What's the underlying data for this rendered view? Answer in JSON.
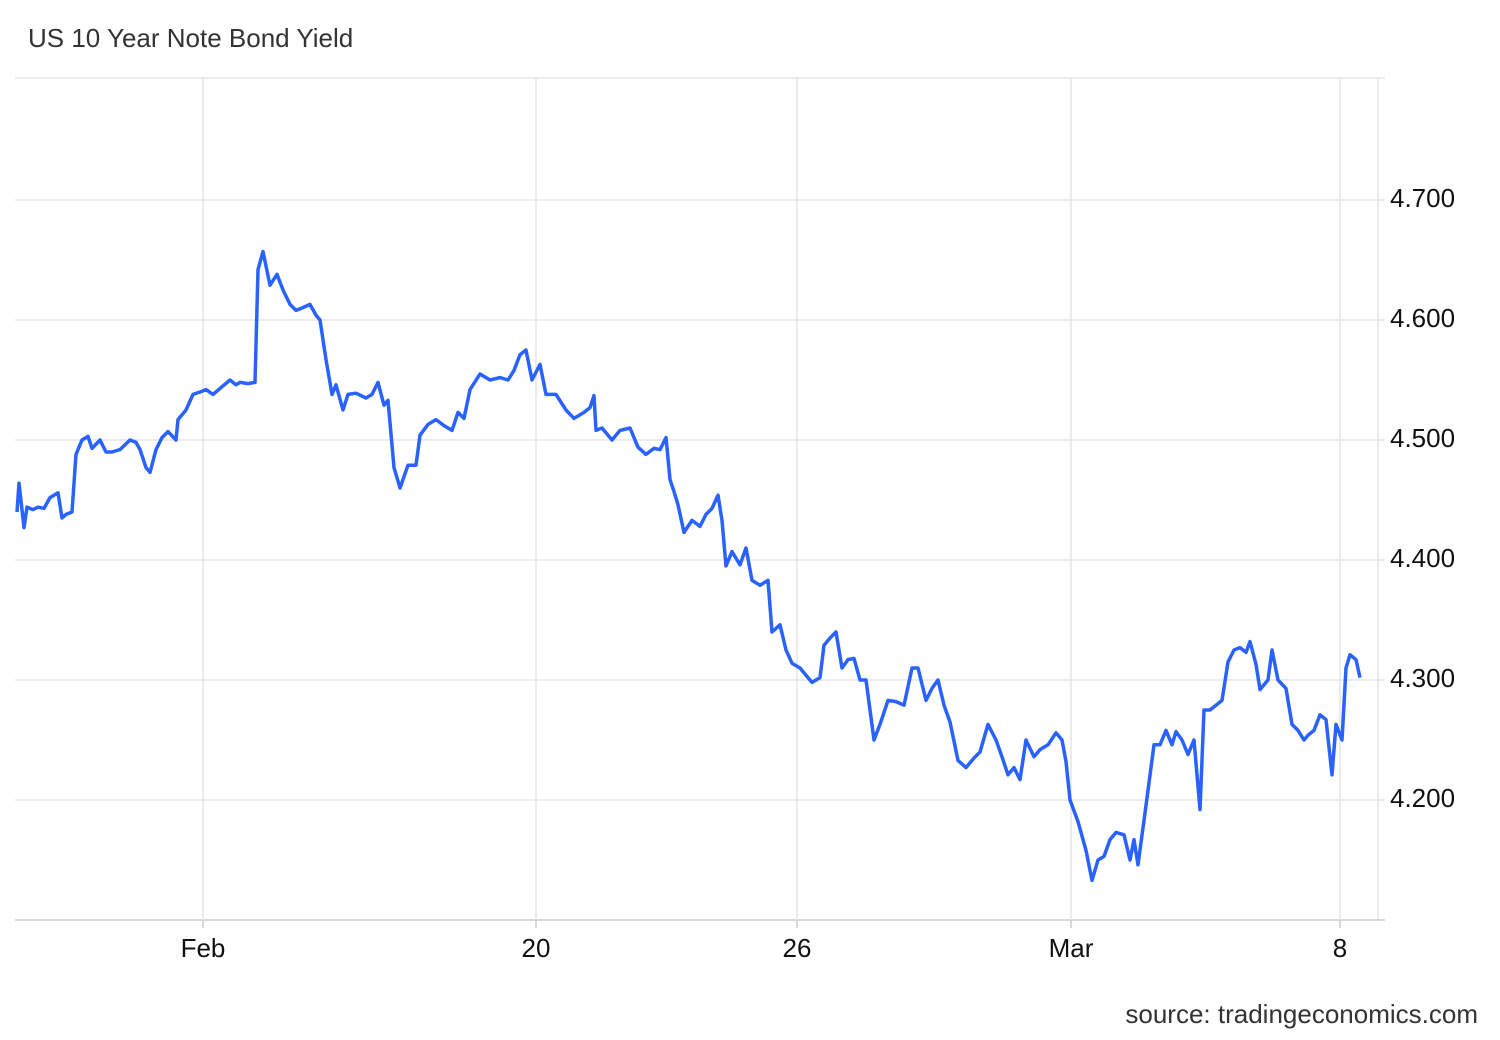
{
  "chart_data": {
    "type": "line",
    "title": "US 10 Year Note Bond Yield",
    "source": "source: tradingeconomics.com",
    "x": [
      2,
      4,
      9,
      12,
      18,
      23,
      29,
      35,
      43,
      47,
      51,
      57,
      61,
      67,
      73,
      77,
      85,
      91,
      97,
      105,
      115,
      121,
      125,
      131,
      135,
      141,
      147,
      153,
      161,
      163,
      171,
      178,
      185,
      191,
      198,
      205,
      215,
      221,
      225,
      233,
      240,
      243,
      248,
      255,
      262,
      268,
      275,
      281,
      287,
      295,
      301,
      305,
      311,
      317,
      321,
      328,
      333,
      341,
      351,
      357,
      363,
      369,
      373,
      379,
      385,
      393,
      401,
      405,
      413,
      421,
      429,
      437,
      443,
      449,
      455,
      465,
      475,
      485,
      493,
      499,
      505,
      511,
      517,
      525,
      531,
      541,
      551,
      559,
      569,
      575,
      579,
      581,
      587,
      597,
      605,
      615,
      623,
      631,
      639,
      645,
      651,
      655,
      659,
      663,
      669,
      677,
      685,
      691,
      697,
      703,
      707,
      711,
      717,
      725,
      731,
      737,
      745,
      753,
      757,
      765,
      771,
      777,
      785,
      793,
      797,
      805,
      809,
      815,
      821,
      827,
      833,
      839,
      845,
      851,
      859,
      865,
      873,
      881,
      889,
      897,
      903,
      911,
      917,
      923,
      929,
      935,
      943,
      951,
      959,
      965,
      973,
      981,
      987,
      993,
      999,
      1005,
      1011,
      1019,
      1025,
      1033,
      1041,
      1047,
      1051,
      1055,
      1063,
      1071,
      1077,
      1083,
      1089,
      1095,
      1101,
      1109,
      1115,
      1119,
      1123,
      1129,
      1133,
      1139,
      1145,
      1151,
      1157,
      1161,
      1167,
      1173,
      1179,
      1185,
      1189,
      1195,
      1201,
      1207,
      1213,
      1219,
      1225,
      1231,
      1235,
      1241,
      1245,
      1253,
      1257,
      1263,
      1271,
      1277,
      1283,
      1289,
      1293,
      1299,
      1305,
      1311,
      1317,
      1321,
      1327,
      1331,
      1335,
      1341,
      1345
    ],
    "series": [
      {
        "name": "US 10 Year Note Bond Yield",
        "color": "#2962ff",
        "values": [
          4.44,
          4.464,
          4.427,
          4.444,
          4.442,
          4.444,
          4.443,
          4.452,
          4.456,
          4.435,
          4.438,
          4.44,
          4.488,
          4.5,
          4.503,
          4.493,
          4.5,
          4.49,
          4.49,
          4.492,
          4.5,
          4.498,
          4.492,
          4.477,
          4.473,
          4.492,
          4.502,
          4.507,
          4.5,
          4.517,
          4.525,
          4.538,
          4.54,
          4.542,
          4.538,
          4.543,
          4.55,
          4.546,
          4.548,
          4.547,
          4.548,
          4.642,
          4.657,
          4.629,
          4.638,
          4.625,
          4.613,
          4.608,
          4.61,
          4.613,
          4.604,
          4.6,
          4.567,
          4.538,
          4.546,
          4.525,
          4.538,
          4.539,
          4.535,
          4.538,
          4.548,
          4.529,
          4.533,
          4.477,
          4.46,
          4.479,
          4.479,
          4.504,
          4.513,
          4.517,
          4.512,
          4.508,
          4.523,
          4.518,
          4.542,
          4.555,
          4.55,
          4.552,
          4.55,
          4.558,
          4.571,
          4.575,
          4.55,
          4.563,
          4.538,
          4.538,
          4.525,
          4.518,
          4.523,
          4.527,
          4.537,
          4.508,
          4.51,
          4.5,
          4.508,
          4.51,
          4.494,
          4.488,
          4.493,
          4.492,
          4.502,
          4.467,
          4.457,
          4.446,
          4.423,
          4.433,
          4.428,
          4.438,
          4.443,
          4.454,
          4.433,
          4.395,
          4.407,
          4.396,
          4.41,
          4.383,
          4.379,
          4.383,
          4.34,
          4.346,
          4.325,
          4.314,
          4.31,
          4.302,
          4.298,
          4.302,
          4.329,
          4.335,
          4.34,
          4.31,
          4.317,
          4.318,
          4.3,
          4.3,
          4.25,
          4.263,
          4.283,
          4.282,
          4.279,
          4.31,
          4.31,
          4.283,
          4.293,
          4.3,
          4.279,
          4.265,
          4.233,
          4.227,
          4.235,
          4.24,
          4.263,
          4.25,
          4.236,
          4.221,
          4.227,
          4.217,
          4.25,
          4.236,
          4.242,
          4.246,
          4.256,
          4.25,
          4.232,
          4.2,
          4.182,
          4.158,
          4.133,
          4.15,
          4.153,
          4.167,
          4.173,
          4.171,
          4.15,
          4.167,
          4.146,
          4.183,
          4.208,
          4.246,
          4.246,
          4.258,
          4.246,
          4.257,
          4.25,
          4.238,
          4.25,
          4.192,
          4.275,
          4.275,
          4.279,
          4.283,
          4.315,
          4.325,
          4.327,
          4.323,
          4.332,
          4.313,
          4.292,
          4.3,
          4.325,
          4.3,
          4.293,
          4.263,
          4.258,
          4.25,
          4.254,
          4.258,
          4.271,
          4.267,
          4.221,
          4.263,
          4.25,
          4.31,
          4.321,
          4.317,
          4.302
        ]
      }
    ],
    "xlim": [
      0,
      1360
    ],
    "xticks": [
      {
        "value": 188,
        "label": "Feb"
      },
      {
        "value": 521,
        "label": "20"
      },
      {
        "value": 782,
        "label": "26"
      },
      {
        "value": 1056,
        "label": "Mar"
      },
      {
        "value": 1325,
        "label": "8"
      }
    ],
    "ylim": [
      4.1,
      4.8
    ],
    "yticks": [
      {
        "value": 4.2,
        "label": "4.200"
      },
      {
        "value": 4.3,
        "label": "4.300"
      },
      {
        "value": 4.4,
        "label": "4.400"
      },
      {
        "value": 4.5,
        "label": "4.500"
      },
      {
        "value": 4.6,
        "label": "4.600"
      },
      {
        "value": 4.7,
        "label": "4.700"
      }
    ],
    "grid": true
  }
}
